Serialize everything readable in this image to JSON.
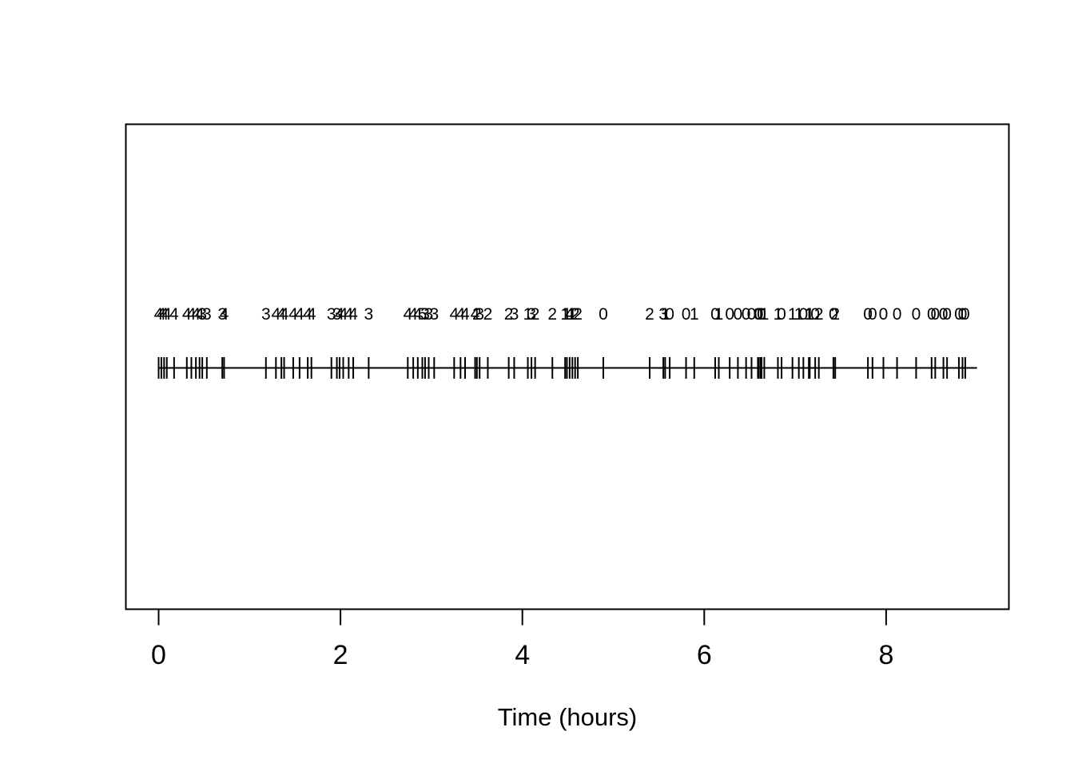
{
  "figure": {
    "background_color": "#ffffff",
    "foreground_color": "#000000"
  },
  "chart_data": {
    "type": "scatter",
    "subtype": "event-rug-timeline",
    "title": "",
    "xlabel": "Time (hours)",
    "ylabel": "",
    "xlim": [
      -0.36,
      9.36
    ],
    "x_ticks": [
      0,
      2,
      4,
      6,
      8
    ],
    "grid": "off",
    "legend": "none",
    "timeline": {
      "start": 0.0,
      "end": 9.0
    },
    "events": [
      {
        "t": 0.0,
        "label": "4"
      },
      {
        "t": 0.03,
        "label": "4"
      },
      {
        "t": 0.06,
        "label": "4"
      },
      {
        "t": 0.09,
        "label": "4"
      },
      {
        "t": 0.17,
        "label": "4"
      },
      {
        "t": 0.31,
        "label": "4"
      },
      {
        "t": 0.36,
        "label": "4"
      },
      {
        "t": 0.41,
        "label": "4"
      },
      {
        "t": 0.45,
        "label": "4"
      },
      {
        "t": 0.48,
        "label": "3"
      },
      {
        "t": 0.53,
        "label": "3"
      },
      {
        "t": 0.7,
        "label": "3"
      },
      {
        "t": 0.72,
        "label": "4"
      },
      {
        "t": 1.18,
        "label": "3"
      },
      {
        "t": 1.29,
        "label": "4"
      },
      {
        "t": 1.35,
        "label": "4"
      },
      {
        "t": 1.38,
        "label": "4"
      },
      {
        "t": 1.48,
        "label": "4"
      },
      {
        "t": 1.55,
        "label": "4"
      },
      {
        "t": 1.64,
        "label": "4"
      },
      {
        "t": 1.68,
        "label": "4"
      },
      {
        "t": 1.9,
        "label": "3"
      },
      {
        "t": 1.96,
        "label": "3"
      },
      {
        "t": 1.99,
        "label": "4"
      },
      {
        "t": 2.03,
        "label": "4"
      },
      {
        "t": 2.09,
        "label": "4"
      },
      {
        "t": 2.14,
        "label": "4"
      },
      {
        "t": 2.31,
        "label": "3"
      },
      {
        "t": 2.74,
        "label": "4"
      },
      {
        "t": 2.8,
        "label": "4"
      },
      {
        "t": 2.85,
        "label": "4"
      },
      {
        "t": 2.9,
        "label": "5"
      },
      {
        "t": 2.93,
        "label": "3"
      },
      {
        "t": 2.97,
        "label": "3"
      },
      {
        "t": 3.03,
        "label": "3"
      },
      {
        "t": 3.25,
        "label": "4"
      },
      {
        "t": 3.32,
        "label": "4"
      },
      {
        "t": 3.37,
        "label": "4"
      },
      {
        "t": 3.48,
        "label": "4"
      },
      {
        "t": 3.5,
        "label": "2"
      },
      {
        "t": 3.53,
        "label": "3"
      },
      {
        "t": 3.62,
        "label": "2"
      },
      {
        "t": 3.85,
        "label": "2"
      },
      {
        "t": 3.91,
        "label": "3"
      },
      {
        "t": 4.06,
        "label": "1"
      },
      {
        "t": 4.1,
        "label": "3"
      },
      {
        "t": 4.14,
        "label": "2"
      },
      {
        "t": 4.33,
        "label": "2"
      },
      {
        "t": 4.47,
        "label": "1"
      },
      {
        "t": 4.49,
        "label": "1"
      },
      {
        "t": 4.52,
        "label": "4"
      },
      {
        "t": 4.55,
        "label": "1"
      },
      {
        "t": 4.58,
        "label": "2"
      },
      {
        "t": 4.61,
        "label": "2"
      },
      {
        "t": 4.89,
        "label": "0"
      },
      {
        "t": 5.4,
        "label": "2"
      },
      {
        "t": 5.55,
        "label": "3"
      },
      {
        "t": 5.57,
        "label": "1"
      },
      {
        "t": 5.62,
        "label": "0"
      },
      {
        "t": 5.8,
        "label": "0"
      },
      {
        "t": 5.89,
        "label": "1"
      },
      {
        "t": 6.12,
        "label": "0"
      },
      {
        "t": 6.16,
        "label": "1"
      },
      {
        "t": 6.28,
        "label": "0"
      },
      {
        "t": 6.37,
        "label": "0"
      },
      {
        "t": 6.46,
        "label": "0"
      },
      {
        "t": 6.52,
        "label": "0"
      },
      {
        "t": 6.59,
        "label": "0"
      },
      {
        "t": 6.6,
        "label": "0"
      },
      {
        "t": 6.62,
        "label": "1"
      },
      {
        "t": 6.63,
        "label": "0"
      },
      {
        "t": 6.66,
        "label": "1"
      },
      {
        "t": 6.81,
        "label": "1"
      },
      {
        "t": 6.85,
        "label": "0"
      },
      {
        "t": 6.97,
        "label": "1"
      },
      {
        "t": 7.04,
        "label": "1"
      },
      {
        "t": 7.09,
        "label": "0"
      },
      {
        "t": 7.15,
        "label": "1"
      },
      {
        "t": 7.16,
        "label": "1"
      },
      {
        "t": 7.22,
        "label": "0"
      },
      {
        "t": 7.26,
        "label": "2"
      },
      {
        "t": 7.42,
        "label": "0"
      },
      {
        "t": 7.44,
        "label": "2"
      },
      {
        "t": 7.8,
        "label": "0"
      },
      {
        "t": 7.85,
        "label": "0"
      },
      {
        "t": 7.97,
        "label": "0"
      },
      {
        "t": 8.12,
        "label": "0"
      },
      {
        "t": 8.33,
        "label": "0"
      },
      {
        "t": 8.5,
        "label": "0"
      },
      {
        "t": 8.54,
        "label": "0"
      },
      {
        "t": 8.63,
        "label": "0"
      },
      {
        "t": 8.67,
        "label": "0"
      },
      {
        "t": 8.8,
        "label": "0"
      },
      {
        "t": 8.84,
        "label": "0"
      },
      {
        "t": 8.87,
        "label": "0"
      }
    ]
  }
}
